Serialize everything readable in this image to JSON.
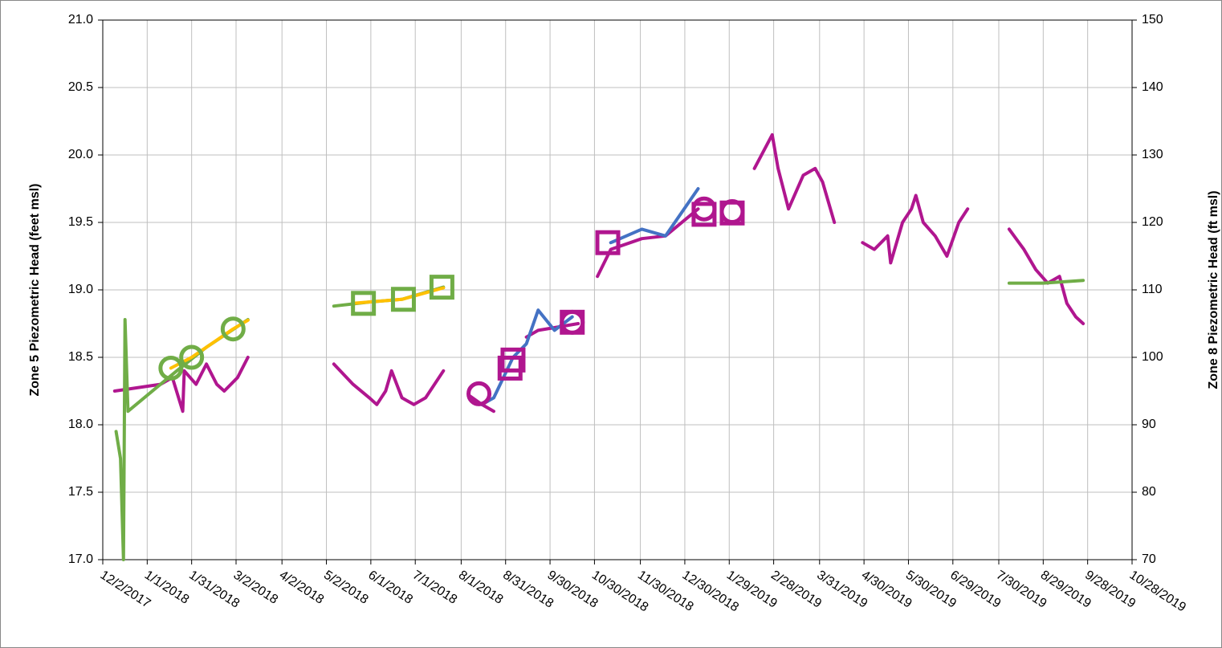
{
  "chart_data": {
    "type": "line",
    "y_label": "Zone 5 Piezometric Head (feet  msl)",
    "y2_label": "Zone 8 Piezometric Head (ft msl)",
    "xlim": [
      "2017-12-02",
      "2019-10-28"
    ],
    "xticks": [
      {
        "value": "2017-12-02",
        "label": "12/2/2017"
      },
      {
        "value": "2018-01-01",
        "label": "1/1/2018"
      },
      {
        "value": "2018-01-31",
        "label": "1/31/2018"
      },
      {
        "value": "2018-03-02",
        "label": "3/2/2018"
      },
      {
        "value": "2018-04-02",
        "label": "4/2/2018"
      },
      {
        "value": "2018-05-02",
        "label": "5/2/2018"
      },
      {
        "value": "2018-06-01",
        "label": "6/1/2018"
      },
      {
        "value": "2018-07-01",
        "label": "7/1/2018"
      },
      {
        "value": "2018-08-01",
        "label": "8/1/2018"
      },
      {
        "value": "2018-08-31",
        "label": "8/31/2018"
      },
      {
        "value": "2018-09-30",
        "label": "9/30/2018"
      },
      {
        "value": "2018-10-30",
        "label": "10/30/2018"
      },
      {
        "value": "2018-11-30",
        "label": "11/30/2018"
      },
      {
        "value": "2018-12-30",
        "label": "12/30/2018"
      },
      {
        "value": "2019-01-29",
        "label": "1/29/2019"
      },
      {
        "value": "2019-02-28",
        "label": "2/28/2019"
      },
      {
        "value": "2019-03-31",
        "label": "3/31/2019"
      },
      {
        "value": "2019-04-30",
        "label": "4/30/2019"
      },
      {
        "value": "2019-05-30",
        "label": "5/30/2019"
      },
      {
        "value": "2019-06-29",
        "label": "6/29/2019"
      },
      {
        "value": "2019-07-30",
        "label": "7/30/2019"
      },
      {
        "value": "2019-08-29",
        "label": "8/29/2019"
      },
      {
        "value": "2019-09-28",
        "label": "9/28/2019"
      },
      {
        "value": "2019-10-28",
        "label": "10/28/2019"
      }
    ],
    "ylim": [
      17,
      21
    ],
    "yticks": [
      {
        "value": 17,
        "label": "17.0"
      },
      17.5,
      {
        "value": 18,
        "label": "18.0"
      },
      18.5,
      {
        "value": 19,
        "label": "19.0"
      },
      19.5,
      {
        "value": 20,
        "label": "20.0"
      },
      20.5,
      {
        "value": 21,
        "label": "21.0"
      }
    ],
    "y2lim": [
      70,
      150
    ],
    "y2ticks": [
      70,
      80,
      90,
      100,
      110,
      120,
      130,
      140,
      150
    ],
    "grid": true,
    "series": [
      {
        "color": "#b0168f",
        "style": "line",
        "x": [
          "2017-12-10",
          "2018-01-10",
          "2018-01-18",
          "2018-01-25",
          "2018-01-26",
          "2018-02-03",
          "2018-02-10",
          "2018-02-17",
          "2018-02-22",
          "2018-03-03",
          "2018-03-10",
          null,
          "2018-05-07",
          "2018-05-20",
          "2018-05-31",
          "2018-06-05",
          "2018-06-11",
          "2018-06-15",
          "2018-06-22",
          "2018-06-30",
          "2018-07-08",
          "2018-07-20",
          null,
          "2018-08-06",
          "2018-08-15",
          "2018-08-23",
          null,
          "2018-09-14",
          "2018-09-22",
          "2018-10-03",
          "2018-10-19",
          null,
          "2018-11-01",
          "2018-11-10",
          "2018-12-01",
          "2018-12-17",
          "2019-01-08",
          null,
          "2019-02-15",
          "2019-02-27",
          "2019-03-03",
          "2019-03-10",
          "2019-03-20",
          "2019-03-28",
          "2019-04-02",
          "2019-04-10",
          null,
          "2019-04-29",
          "2019-05-07",
          "2019-05-16",
          "2019-05-18",
          "2019-05-26",
          "2019-06-01",
          "2019-06-04",
          "2019-06-09",
          "2019-06-17",
          "2019-06-25",
          "2019-07-03",
          "2019-07-09",
          null,
          "2019-08-06",
          "2019-08-16",
          "2019-08-24",
          "2019-09-01",
          "2019-09-09",
          "2019-09-14",
          "2019-09-20",
          "2019-09-25"
        ],
        "values": [
          18.25,
          18.3,
          18.35,
          18.1,
          18.4,
          18.3,
          18.45,
          18.3,
          18.25,
          18.35,
          18.5,
          null,
          18.45,
          18.3,
          18.2,
          18.15,
          18.25,
          18.4,
          18.2,
          18.15,
          18.2,
          18.4,
          null,
          18.22,
          18.15,
          18.1,
          null,
          18.65,
          18.7,
          18.72,
          18.75,
          null,
          19.1,
          19.3,
          19.38,
          19.4,
          19.6,
          null,
          19.9,
          20.15,
          19.9,
          19.6,
          19.85,
          19.9,
          19.8,
          19.5,
          null,
          19.35,
          19.3,
          19.4,
          19.2,
          19.5,
          19.6,
          19.7,
          19.5,
          19.4,
          19.25,
          19.5,
          19.6,
          null,
          19.45,
          19.3,
          19.15,
          19.05,
          19.1,
          18.9,
          18.8,
          18.75
        ]
      },
      {
        "color": "#4472c4",
        "style": "line",
        "x": [
          "2018-08-15",
          "2018-08-23",
          "2018-09-05",
          "2018-09-14",
          "2018-09-22",
          "2018-10-03",
          "2018-10-15",
          null,
          "2018-11-10",
          "2018-12-01",
          "2018-12-17",
          "2019-01-08"
        ],
        "values": [
          18.15,
          18.2,
          18.5,
          18.6,
          18.85,
          18.7,
          18.8,
          null,
          19.35,
          19.45,
          19.4,
          19.75
        ]
      },
      {
        "color": "#70ad47",
        "style": "line",
        "axis": "y2",
        "x": [
          "2017-12-11",
          "2017-12-14",
          "2017-12-16",
          "2017-12-17",
          "2017-12-19",
          "2018-01-10",
          "2018-01-21",
          "2018-02-10",
          "2018-03-10",
          null,
          "2018-05-07",
          "2018-05-31",
          "2018-06-22",
          "2018-07-20",
          null,
          "2019-08-06",
          "2019-08-29",
          "2019-09-25"
        ],
        "values": [
          89,
          85,
          70,
          105.6,
          92,
          96,
          98,
          101.5,
          105.6,
          null,
          107.6,
          108.2,
          108.6,
          110.4,
          null,
          111,
          111,
          111.4
        ]
      },
      {
        "color": "#ffc000",
        "style": "line",
        "axis": "y2",
        "x": [
          "2018-01-17",
          "2018-01-31",
          "2018-02-28",
          "2018-03-10",
          null,
          "2018-05-20",
          "2018-06-22",
          "2018-07-20"
        ],
        "values": [
          98.4,
          100,
          104.2,
          105.5,
          null,
          108,
          108.6,
          110.3
        ]
      },
      {
        "color": "#70ad47",
        "style": "circle",
        "axis": "y2",
        "x": [
          "2018-01-17",
          "2018-01-31",
          "2018-02-28"
        ],
        "values": [
          98.4,
          100,
          104.2
        ]
      },
      {
        "color": "#70ad47",
        "style": "square",
        "axis": "y2",
        "x": [
          "2018-05-27",
          "2018-06-23",
          "2018-07-19"
        ],
        "values": [
          108,
          108.6,
          110.4
        ]
      },
      {
        "color": "#b0168f",
        "style": "circle",
        "x": [
          "2018-08-13",
          "2018-10-15",
          "2019-01-12",
          "2019-01-31"
        ],
        "values": [
          18.23,
          18.76,
          19.6,
          19.58
        ]
      },
      {
        "color": "#b0168f",
        "style": "square",
        "x": [
          "2018-09-03",
          "2018-09-05",
          "2018-10-15",
          "2018-11-08",
          "2019-01-12",
          "2019-01-31"
        ],
        "values": [
          18.42,
          18.48,
          18.76,
          19.35,
          19.56,
          19.57
        ]
      }
    ]
  }
}
